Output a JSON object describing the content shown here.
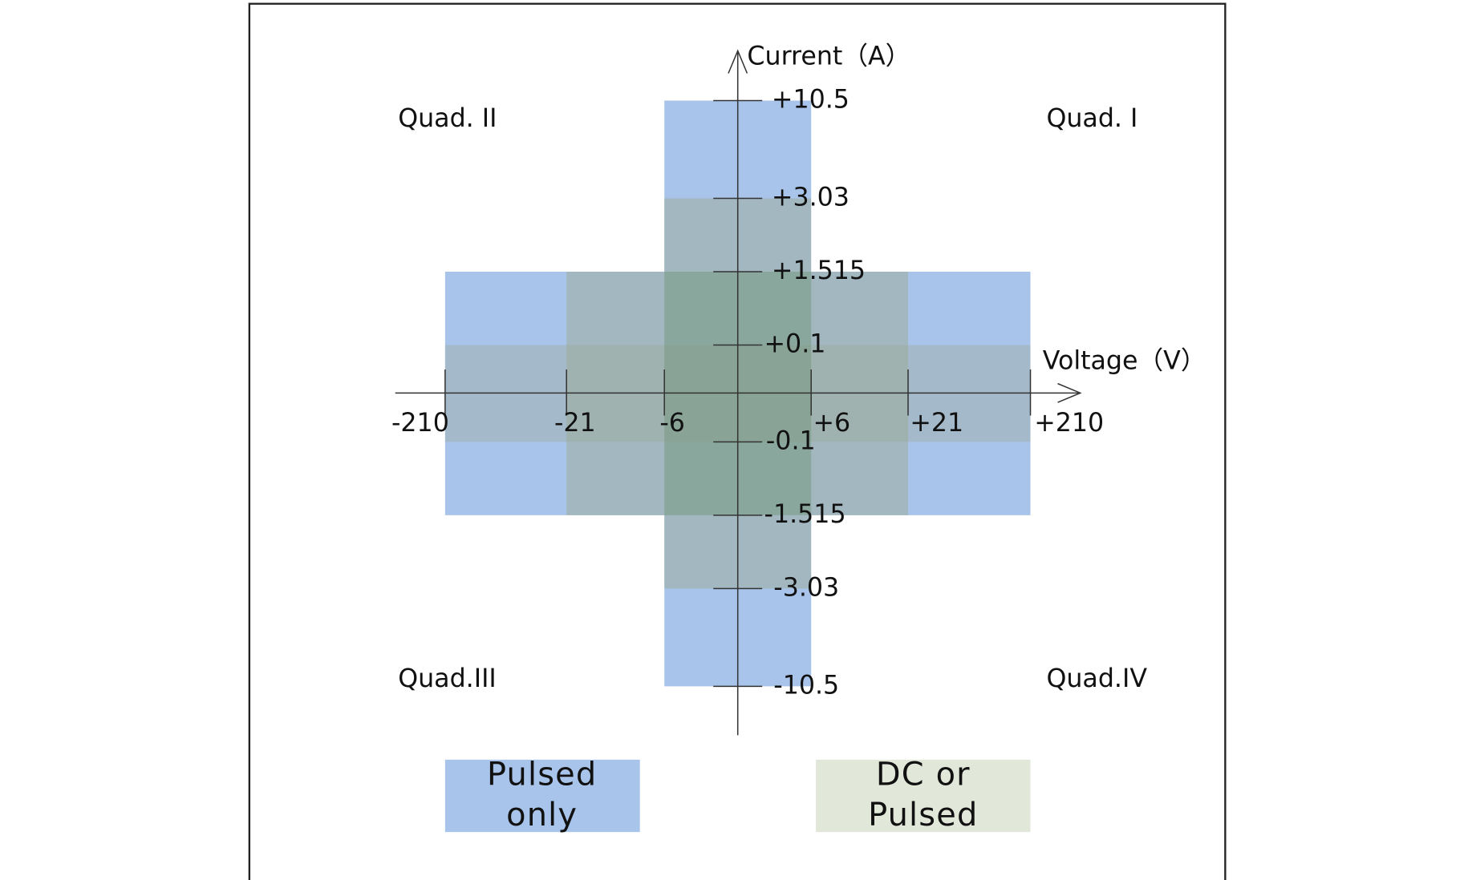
{
  "axes": {
    "y_label": "Current（A）",
    "x_label": "Voltage（V）"
  },
  "x_ticks": [
    "-210",
    "-21",
    "-6",
    "+6",
    "+21",
    "+210"
  ],
  "y_ticks": [
    "+10.5",
    "+3.03",
    "+1.515",
    "+0.1",
    "-0.1",
    "-1.515",
    "-3.03",
    "-10.5"
  ],
  "quadrants": [
    "Quad. II",
    "Quad. I",
    "Quad.III",
    "Quad.IV"
  ],
  "legend": [
    {
      "lines": [
        "Pulsed",
        "only"
      ]
    },
    {
      "lines": [
        "DC or",
        "Pulsed"
      ]
    }
  ]
}
